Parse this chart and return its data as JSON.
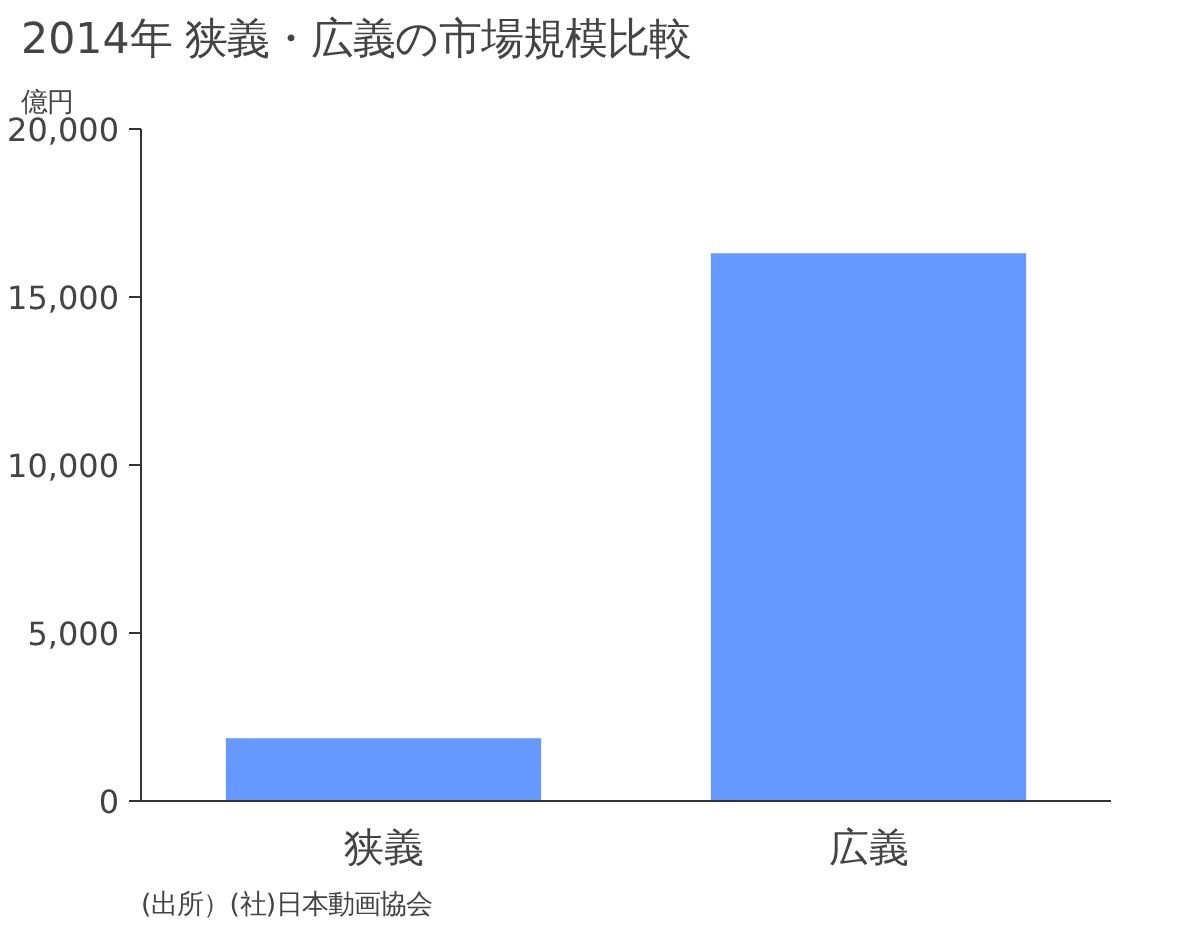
{
  "chart_data": {
    "type": "bar",
    "title": "2014年 狭義・広義の市場規模比較",
    "ylabel": "億円",
    "categories": [
      "狭義",
      "広義"
    ],
    "values": [
      1870,
      16300
    ],
    "color": "#6699ff",
    "ylim": [
      0,
      20000
    ],
    "yticks": [
      {
        "value": 0,
        "label": "0"
      },
      {
        "value": 5000,
        "label": "5,000"
      },
      {
        "value": 10000,
        "label": "10,000"
      },
      {
        "value": 15000,
        "label": "15,000"
      },
      {
        "value": 20000,
        "label": "20,000"
      }
    ],
    "grid": false,
    "annotations": [
      "(出所）(社)日本動画協会"
    ]
  }
}
